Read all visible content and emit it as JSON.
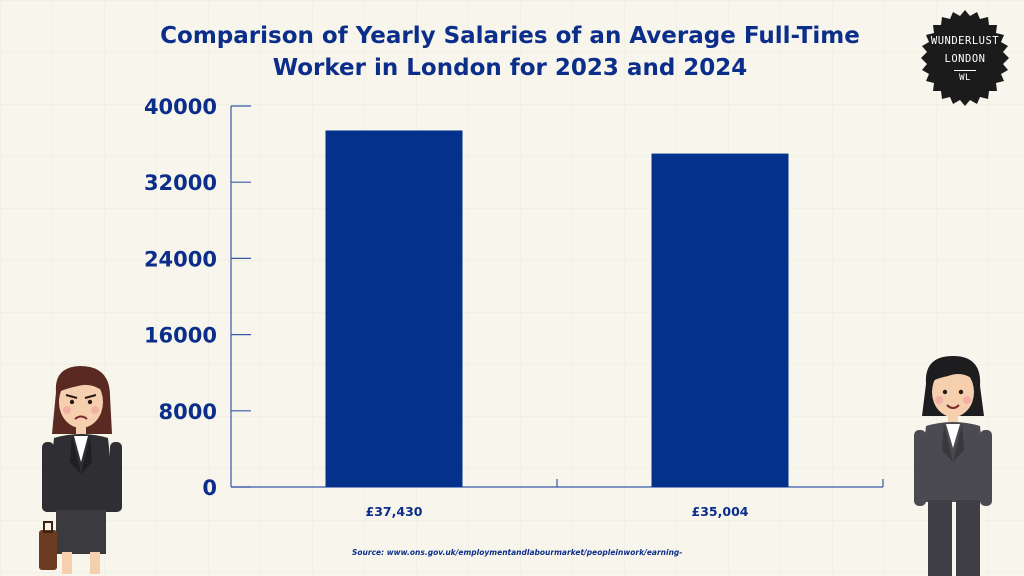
{
  "brand": {
    "line1": "WUNDERLUST",
    "line2": "LONDON",
    "line3": "WL"
  },
  "source_text": "Source: www.ons.gov.uk/employmentandlabourmarket/peopleinwork/earning-",
  "colors": {
    "bar": "#04318c",
    "text": "#0b2e8a",
    "axis": "#3a58a8"
  },
  "chart_data": {
    "type": "bar",
    "title": "Comparison of Yearly Salaries of an Average Full-Time Worker in London for 2023 and 2024",
    "title_lines": [
      "Comparison of Yearly Salaries of an Average Full-Time",
      "Worker in London for 2023 and 2024"
    ],
    "categories": [
      "£37,430",
      "£35,004"
    ],
    "values": [
      37430,
      35004
    ],
    "ylim": [
      0,
      40000
    ],
    "yticks": [
      0,
      8000,
      16000,
      24000,
      32000,
      40000
    ],
    "xlabel": "",
    "ylabel": "",
    "grid": false,
    "legend": "none"
  }
}
